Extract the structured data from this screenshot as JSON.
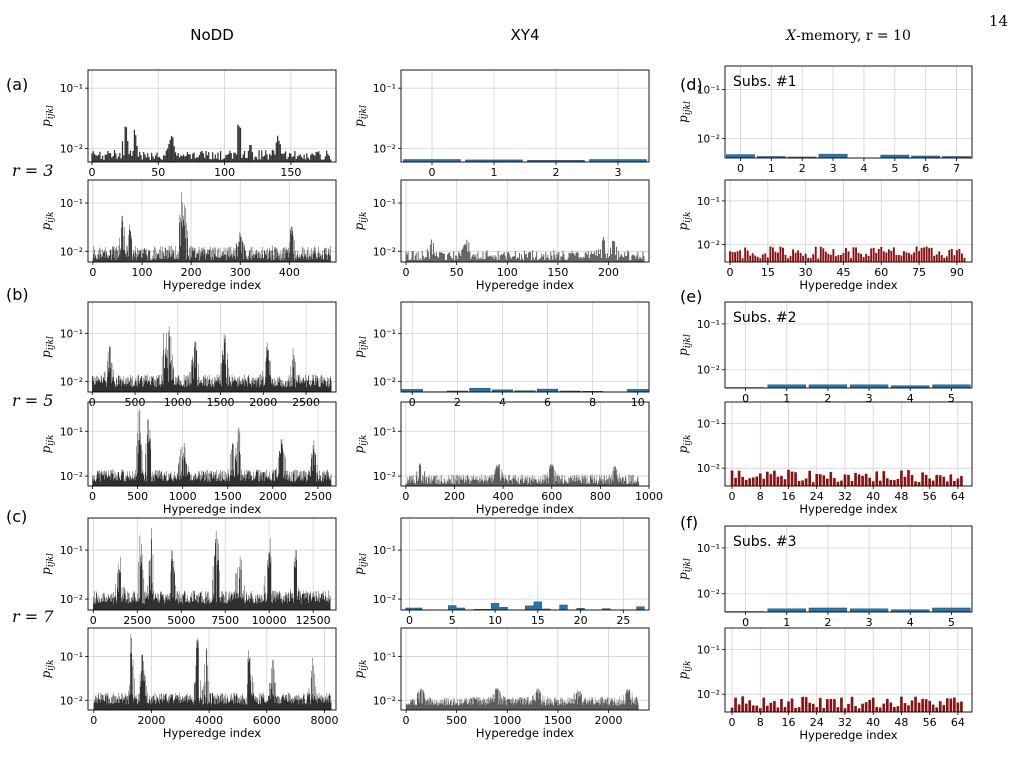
{
  "page": {
    "number": "14"
  },
  "columns": {
    "nodd": "NoDD",
    "xy4": "XY4",
    "memory_prefix": "X",
    "memory_suffix": "-memory, r = 10"
  },
  "rows": [
    {
      "panel": "(a)",
      "r_label": "r = 3"
    },
    {
      "panel": "(b)",
      "r_label": "r = 5"
    },
    {
      "panel": "(c)",
      "r_label": "r = 7"
    }
  ],
  "right_panels": [
    "(d)",
    "(e)",
    "(f)"
  ],
  "axis_text": {
    "xlabel": "Hyperedge index",
    "ylabel_four": "p_ijkl",
    "ylabel_three": "p_ijk",
    "ytick_1e-1": "10⁻¹",
    "ytick_1e-2": "10⁻²"
  },
  "colors": {
    "nodd": "#1a1a1a",
    "xy4": "#1f77b4",
    "xy4_weight3": "#4a4a4a",
    "memory_weight3": "#8b1010",
    "grid": "#d3d3d3"
  },
  "chart_data": [
    {
      "id": "a-top",
      "type": "bar",
      "column": "NoDD",
      "row": "r = 3",
      "ylabel": "p_ijkl",
      "yscale": "log",
      "ylim": [
        0.006,
        0.2
      ],
      "xlim": [
        -3,
        184
      ],
      "xticks": [
        0,
        50,
        100,
        150
      ],
      "n_bars": 181,
      "values": "dense; baseline ~0.007-0.009, peaks ~0.028 near x≈25-35 and ~0.05 near x≈111"
    },
    {
      "id": "a-bottom",
      "type": "bar",
      "column": "NoDD",
      "row": "r = 3",
      "ylabel": "p_ijk",
      "xlabel": "Hyperedge index",
      "yscale": "log",
      "ylim": [
        0.006,
        0.3
      ],
      "xlim": [
        -10,
        495
      ],
      "xticks": [
        0,
        100,
        200,
        300,
        400,
        500
      ],
      "n_bars": 485,
      "values": "dense; baseline ~0.008-0.012, peaks ~0.07 at x≈60, ~0.18 at x≈180-190, ~0.04 near x≈405"
    },
    {
      "id": "b-top",
      "type": "bar",
      "column": "NoDD",
      "row": "r = 5",
      "ylabel": "p_ijkl",
      "yscale": "log",
      "ylim": [
        0.006,
        0.45
      ],
      "xlim": [
        -50,
        2850
      ],
      "xticks": [
        0,
        500,
        1000,
        1500,
        2000,
        2500
      ],
      "n_bars": 2800,
      "values": "dense; baseline ~0.01, peaks up to ~0.3 near x≈850"
    },
    {
      "id": "b-bottom",
      "type": "bar",
      "column": "NoDD",
      "row": "r = 5",
      "ylabel": "p_ijk",
      "xlabel": "Hyperedge index",
      "yscale": "log",
      "ylim": [
        0.006,
        0.45
      ],
      "xlim": [
        -50,
        2700
      ],
      "xticks": [
        0,
        500,
        1000,
        1500,
        2000,
        2500
      ],
      "n_bars": 2650,
      "values": "dense; baseline ~0.01, peaks up to ~0.35 near x≈520-620 and x≈1560"
    },
    {
      "id": "c-top",
      "type": "bar",
      "column": "NoDD",
      "row": "r = 7",
      "ylabel": "p_ijkl",
      "yscale": "log",
      "ylim": [
        0.006,
        0.45
      ],
      "xlim": [
        -300,
        13800
      ],
      "xticks": [
        0,
        2500,
        5000,
        7500,
        10000,
        12500
      ],
      "n_bars": 13500,
      "values": "dense; baseline ~0.01, peaks ~0.3 near x≈2700-3300, 7000, 10000"
    },
    {
      "id": "c-bottom",
      "type": "bar",
      "column": "NoDD",
      "row": "r = 7",
      "ylabel": "p_ijk",
      "xlabel": "Hyperedge index",
      "yscale": "log",
      "ylim": [
        0.006,
        0.45
      ],
      "xlim": [
        -200,
        8400
      ],
      "xticks": [
        0,
        2000,
        4000,
        6000,
        8000
      ],
      "n_bars": 8250,
      "values": "dense; baseline ~0.01, peaks ~0.35 near x≈1300, 3600, 5400"
    },
    {
      "id": "a-top-xy4",
      "type": "bar",
      "column": "XY4",
      "row": "r = 3",
      "ylabel": "p_ijkl",
      "yscale": "log",
      "ylim": [
        0.006,
        0.2
      ],
      "xlim": [
        -0.5,
        3.5
      ],
      "xticks": [
        0,
        1,
        2,
        3
      ],
      "categories": [
        0,
        1,
        2,
        3
      ],
      "values": [
        0.0066,
        0.0065,
        0.0064,
        0.0066
      ]
    },
    {
      "id": "a-bottom-xy4",
      "type": "bar",
      "column": "XY4",
      "row": "r = 3",
      "ylabel": "p_ijk",
      "xlabel": "Hyperedge index",
      "yscale": "log",
      "ylim": [
        0.006,
        0.3
      ],
      "xlim": [
        -5,
        240
      ],
      "xticks": [
        0,
        50,
        100,
        150,
        200
      ],
      "n_bars": 236,
      "values": "dense; baseline ~0.008, peaks ~0.02 near x≈25, 60, 195-205"
    },
    {
      "id": "b-top-xy4",
      "type": "bar",
      "column": "XY4",
      "row": "r = 5",
      "ylabel": "p_ijkl",
      "yscale": "log",
      "ylim": [
        0.006,
        0.45
      ],
      "xlim": [
        -0.5,
        10.5
      ],
      "xticks": [
        0,
        2,
        4,
        6,
        8,
        10
      ],
      "categories": [
        0,
        1,
        2,
        3,
        4,
        5,
        6,
        7,
        8,
        9,
        10
      ],
      "values": [
        0.0068,
        0.0061,
        0.0063,
        0.0072,
        0.0067,
        0.0064,
        0.0069,
        0.0063,
        0.0062,
        0.0059,
        0.0068
      ]
    },
    {
      "id": "b-bottom-xy4",
      "type": "bar",
      "column": "XY4",
      "row": "r = 5",
      "ylabel": "p_ijk",
      "xlabel": "Hyperedge index",
      "yscale": "log",
      "ylim": [
        0.006,
        0.45
      ],
      "xlim": [
        -20,
        1000
      ],
      "xticks": [
        0,
        200,
        400,
        600,
        800,
        1000
      ],
      "n_bars": 960,
      "values": "dense; baseline ~0.008, peaks ~0.02"
    },
    {
      "id": "c-top-xy4",
      "type": "bar",
      "column": "XY4",
      "row": "r = 7",
      "ylabel": "p_ijkl",
      "yscale": "log",
      "ylim": [
        0.006,
        0.45
      ],
      "xlim": [
        -1,
        28
      ],
      "xticks": [
        0,
        5,
        10,
        15,
        20,
        25
      ],
      "categories": [
        0,
        1,
        2,
        3,
        4,
        5,
        6,
        7,
        8,
        9,
        10,
        11,
        12,
        13,
        14,
        15,
        16,
        17,
        18,
        19,
        20,
        21,
        22,
        23,
        24,
        25,
        26,
        27
      ],
      "values": [
        0.0066,
        0.0066,
        0.0058,
        0.0057,
        0.0058,
        0.0074,
        0.0066,
        0.0058,
        0.0062,
        0.0062,
        0.0082,
        0.0068,
        0.0057,
        0.006,
        0.0073,
        0.0088,
        0.0063,
        0.0058,
        0.0076,
        0.0059,
        0.0065,
        0.006,
        0.0058,
        0.0064,
        0.0058,
        0.0059,
        0.006,
        0.007
      ]
    },
    {
      "id": "c-bottom-xy4",
      "type": "bar",
      "column": "XY4",
      "row": "r = 7",
      "ylabel": "p_ijk",
      "xlabel": "Hyperedge index",
      "yscale": "log",
      "ylim": [
        0.006,
        0.45
      ],
      "xlim": [
        -50,
        2400
      ],
      "xticks": [
        0,
        500,
        1000,
        1500,
        2000
      ],
      "n_bars": 2300,
      "values": "dense; baseline ~0.009, peaks ~0.02"
    },
    {
      "id": "d-top",
      "type": "bar",
      "column": "X-memory, r = 10",
      "panel": "(d)",
      "subset": "Subs. #1",
      "ylabel": "p_ijkl",
      "yscale": "log",
      "ylim": [
        0.004,
        0.3
      ],
      "xlim": [
        -0.5,
        7.5
      ],
      "xticks": [
        0,
        1,
        2,
        3,
        4,
        5,
        6,
        7
      ],
      "categories": [
        0,
        1,
        2,
        3,
        4,
        5,
        6,
        7
      ],
      "values": [
        0.0047,
        0.0043,
        0.0042,
        0.0048,
        0.0039,
        0.0046,
        0.0044,
        0.0043
      ]
    },
    {
      "id": "d-bottom",
      "type": "bar",
      "column": "X-memory, r = 10",
      "panel": "(d)",
      "ylabel": "p_ijk",
      "xlabel": "Hyperedge index",
      "yscale": "log",
      "ylim": [
        0.004,
        0.3
      ],
      "xlim": [
        -2,
        96
      ],
      "xticks": [
        0,
        15,
        30,
        45,
        60,
        75,
        90
      ],
      "n_bars": 94,
      "values": "each bar ~0.005-0.009"
    },
    {
      "id": "e-top",
      "type": "bar",
      "column": "X-memory, r = 10",
      "panel": "(e)",
      "subset": "Subs. #2",
      "ylabel": "p_ijkl",
      "yscale": "log",
      "ylim": [
        0.004,
        0.3
      ],
      "xlim": [
        -0.5,
        5.5
      ],
      "xticks": [
        0,
        1,
        2,
        3,
        4,
        5
      ],
      "categories": [
        0,
        1,
        2,
        3,
        4,
        5
      ],
      "values": [
        0.0041,
        0.0047,
        0.0047,
        0.0047,
        0.0045,
        0.0047
      ]
    },
    {
      "id": "e-bottom",
      "type": "bar",
      "column": "X-memory, r = 10",
      "panel": "(e)",
      "ylabel": "p_ijk",
      "xlabel": "Hyperedge index",
      "yscale": "log",
      "ylim": [
        0.004,
        0.3
      ],
      "xlim": [
        -2,
        68
      ],
      "xticks": [
        0,
        8,
        16,
        24,
        32,
        40,
        48,
        56,
        64
      ],
      "n_bars": 66,
      "values": "each bar ~0.005-0.008"
    },
    {
      "id": "f-top",
      "type": "bar",
      "column": "X-memory, r = 10",
      "panel": "(f)",
      "subset": "Subs. #3",
      "ylabel": "p_ijkl",
      "yscale": "log",
      "ylim": [
        0.004,
        0.3
      ],
      "xlim": [
        -0.5,
        5.5
      ],
      "xticks": [
        0,
        1,
        2,
        3,
        4,
        5
      ],
      "categories": [
        0,
        1,
        2,
        3,
        4,
        5
      ],
      "values": [
        0.0041,
        0.0047,
        0.0049,
        0.0047,
        0.0045,
        0.0049
      ]
    },
    {
      "id": "f-bottom",
      "type": "bar",
      "column": "X-memory, r = 10",
      "panel": "(f)",
      "ylabel": "p_ijk",
      "xlabel": "Hyperedge index",
      "yscale": "log",
      "ylim": [
        0.004,
        0.3
      ],
      "xlim": [
        -2,
        68
      ],
      "xticks": [
        0,
        8,
        16,
        24,
        32,
        40,
        48,
        56,
        64
      ],
      "n_bars": 66,
      "values": "each bar ~0.005-0.008"
    }
  ]
}
